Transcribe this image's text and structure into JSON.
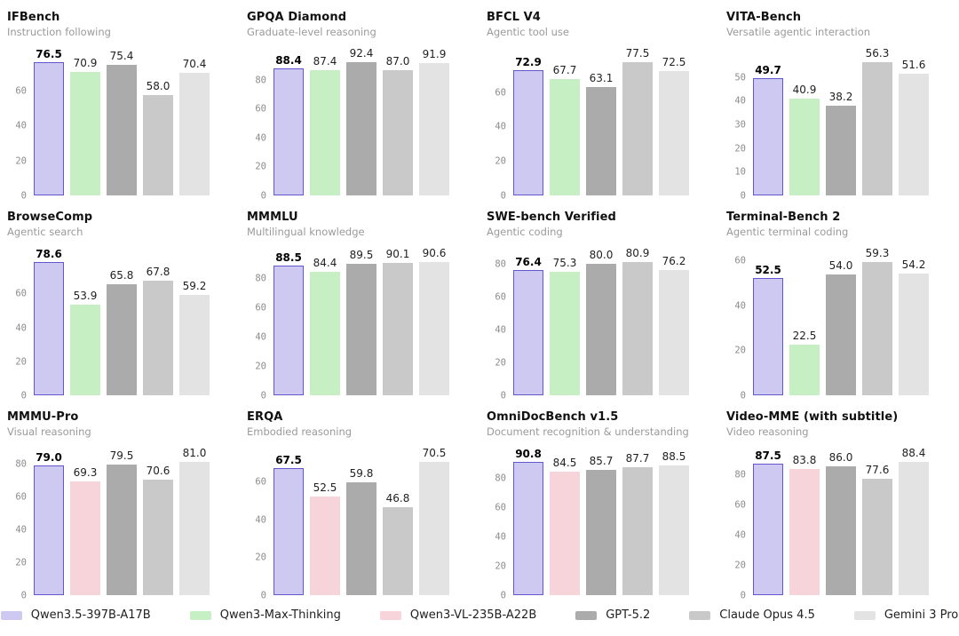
{
  "models": [
    {
      "name": "Qwen3.5-397B-A17B",
      "fill": "#cdc9f0",
      "border": "#6257cf"
    },
    {
      "name": "Qwen3-Max-Thinking",
      "fill": "#c6efc3",
      "border": null
    },
    {
      "name": "Qwen3-VL-235B-A22B",
      "fill": "#f6d4da",
      "border": null
    },
    {
      "name": "GPT-5.2",
      "fill": "#ababab",
      "border": null
    },
    {
      "name": "Claude Opus 4.5",
      "fill": "#c9c9c9",
      "border": null
    },
    {
      "name": "Gemini 3 Pro",
      "fill": "#e3e3e3",
      "border": null
    }
  ],
  "chart_data": [
    {
      "type": "bar",
      "title": "IFBench",
      "subtitle": "Instruction following",
      "yticks": [
        0,
        20,
        40,
        60
      ],
      "grid": false,
      "series": [
        {
          "name": "Qwen3.5-397B-A17B",
          "value": 76.5,
          "label": "76.5",
          "highlight": true
        },
        {
          "name": "Qwen3-Max-Thinking",
          "value": 70.9,
          "label": "70.9",
          "highlight": false
        },
        {
          "name": "GPT-5.2",
          "value": 75.4,
          "label": "75.4",
          "highlight": false
        },
        {
          "name": "Claude Opus 4.5",
          "value": 58.0,
          "label": "58.0",
          "highlight": false
        },
        {
          "name": "Gemini 3 Pro",
          "value": 70.4,
          "label": "70.4",
          "highlight": false
        }
      ]
    },
    {
      "type": "bar",
      "title": "GPQA Diamond",
      "subtitle": "Graduate-level reasoning",
      "yticks": [
        0,
        20,
        40,
        60,
        80
      ],
      "grid": false,
      "series": [
        {
          "name": "Qwen3.5-397B-A17B",
          "value": 88.4,
          "label": "88.4",
          "highlight": true
        },
        {
          "name": "Qwen3-Max-Thinking",
          "value": 87.4,
          "label": "87.4",
          "highlight": false
        },
        {
          "name": "GPT-5.2",
          "value": 92.4,
          "label": "92.4",
          "highlight": false
        },
        {
          "name": "Claude Opus 4.5",
          "value": 87.0,
          "label": "87.0",
          "highlight": false
        },
        {
          "name": "Gemini 3 Pro",
          "value": 91.9,
          "label": "91.9",
          "highlight": false
        }
      ]
    },
    {
      "type": "bar",
      "title": "BFCL V4",
      "subtitle": "Agentic tool use",
      "yticks": [
        0,
        20,
        40,
        60
      ],
      "grid": false,
      "series": [
        {
          "name": "Qwen3.5-397B-A17B",
          "value": 72.9,
          "label": "72.9",
          "highlight": true
        },
        {
          "name": "Qwen3-Max-Thinking",
          "value": 67.7,
          "label": "67.7",
          "highlight": false
        },
        {
          "name": "GPT-5.2",
          "value": 63.1,
          "label": "63.1",
          "highlight": false
        },
        {
          "name": "Claude Opus 4.5",
          "value": 77.5,
          "label": "77.5",
          "highlight": false
        },
        {
          "name": "Gemini 3 Pro",
          "value": 72.5,
          "label": "72.5",
          "highlight": false
        }
      ]
    },
    {
      "type": "bar",
      "title": "VITA-Bench",
      "subtitle": "Versatile agentic interaction",
      "yticks": [
        0,
        10,
        20,
        30,
        40,
        50
      ],
      "grid": false,
      "series": [
        {
          "name": "Qwen3.5-397B-A17B",
          "value": 49.7,
          "label": "49.7",
          "highlight": true
        },
        {
          "name": "Qwen3-Max-Thinking",
          "value": 40.9,
          "label": "40.9",
          "highlight": false
        },
        {
          "name": "GPT-5.2",
          "value": 38.2,
          "label": "38.2",
          "highlight": false
        },
        {
          "name": "Claude Opus 4.5",
          "value": 56.3,
          "label": "56.3",
          "highlight": false
        },
        {
          "name": "Gemini 3 Pro",
          "value": 51.6,
          "label": "51.6",
          "highlight": false
        }
      ]
    },
    {
      "type": "bar",
      "title": "BrowseComp",
      "subtitle": "Agentic search",
      "yticks": [
        0,
        20,
        40,
        60
      ],
      "grid": false,
      "series": [
        {
          "name": "Qwen3.5-397B-A17B",
          "value": 78.6,
          "label": "78.6",
          "highlight": true
        },
        {
          "name": "Qwen3-Max-Thinking",
          "value": 53.9,
          "label": "53.9",
          "highlight": false
        },
        {
          "name": "GPT-5.2",
          "value": 65.8,
          "label": "65.8",
          "highlight": false
        },
        {
          "name": "Claude Opus 4.5",
          "value": 67.8,
          "label": "67.8",
          "highlight": false
        },
        {
          "name": "Gemini 3 Pro",
          "value": 59.2,
          "label": "59.2",
          "highlight": false
        }
      ]
    },
    {
      "type": "bar",
      "title": "MMMLU",
      "subtitle": "Multilingual knowledge",
      "yticks": [
        0,
        20,
        40,
        60,
        80
      ],
      "grid": false,
      "series": [
        {
          "name": "Qwen3.5-397B-A17B",
          "value": 88.5,
          "label": "88.5",
          "highlight": true
        },
        {
          "name": "Qwen3-Max-Thinking",
          "value": 84.4,
          "label": "84.4",
          "highlight": false
        },
        {
          "name": "GPT-5.2",
          "value": 89.5,
          "label": "89.5",
          "highlight": false
        },
        {
          "name": "Claude Opus 4.5",
          "value": 90.1,
          "label": "90.1",
          "highlight": false
        },
        {
          "name": "Gemini 3 Pro",
          "value": 90.6,
          "label": "90.6",
          "highlight": false
        }
      ]
    },
    {
      "type": "bar",
      "title": "SWE-bench Verified",
      "subtitle": "Agentic coding",
      "yticks": [
        0,
        20,
        40,
        60,
        80
      ],
      "grid": false,
      "series": [
        {
          "name": "Qwen3.5-397B-A17B",
          "value": 76.4,
          "label": "76.4",
          "highlight": true
        },
        {
          "name": "Qwen3-Max-Thinking",
          "value": 75.3,
          "label": "75.3",
          "highlight": false
        },
        {
          "name": "GPT-5.2",
          "value": 80.0,
          "label": "80.0",
          "highlight": false
        },
        {
          "name": "Claude Opus 4.5",
          "value": 80.9,
          "label": "80.9",
          "highlight": false
        },
        {
          "name": "Gemini 3 Pro",
          "value": 76.2,
          "label": "76.2",
          "highlight": false
        }
      ]
    },
    {
      "type": "bar",
      "title": "Terminal-Bench 2",
      "subtitle": "Agentic terminal coding",
      "yticks": [
        0,
        20,
        40,
        60
      ],
      "grid": false,
      "series": [
        {
          "name": "Qwen3.5-397B-A17B",
          "value": 52.5,
          "label": "52.5",
          "highlight": true
        },
        {
          "name": "Qwen3-Max-Thinking",
          "value": 22.5,
          "label": "22.5",
          "highlight": false
        },
        {
          "name": "GPT-5.2",
          "value": 54.0,
          "label": "54.0",
          "highlight": false
        },
        {
          "name": "Claude Opus 4.5",
          "value": 59.3,
          "label": "59.3",
          "highlight": false
        },
        {
          "name": "Gemini 3 Pro",
          "value": 54.2,
          "label": "54.2",
          "highlight": false
        }
      ]
    },
    {
      "type": "bar",
      "title": "MMMU-Pro",
      "subtitle": "Visual reasoning",
      "yticks": [
        0,
        20,
        40,
        60,
        80
      ],
      "grid": false,
      "series": [
        {
          "name": "Qwen3.5-397B-A17B",
          "value": 79.0,
          "label": "79.0",
          "highlight": true
        },
        {
          "name": "Qwen3-VL-235B-A22B",
          "value": 69.3,
          "label": "69.3",
          "highlight": false
        },
        {
          "name": "GPT-5.2",
          "value": 79.5,
          "label": "79.5",
          "highlight": false
        },
        {
          "name": "Claude Opus 4.5",
          "value": 70.6,
          "label": "70.6",
          "highlight": false
        },
        {
          "name": "Gemini 3 Pro",
          "value": 81.0,
          "label": "81.0",
          "highlight": false
        }
      ]
    },
    {
      "type": "bar",
      "title": "ERQA",
      "subtitle": "Embodied reasoning",
      "yticks": [
        0,
        20,
        40,
        60
      ],
      "grid": false,
      "series": [
        {
          "name": "Qwen3.5-397B-A17B",
          "value": 67.5,
          "label": "67.5",
          "highlight": true
        },
        {
          "name": "Qwen3-VL-235B-A22B",
          "value": 52.5,
          "label": "52.5",
          "highlight": false
        },
        {
          "name": "GPT-5.2",
          "value": 59.8,
          "label": "59.8",
          "highlight": false
        },
        {
          "name": "Claude Opus 4.5",
          "value": 46.8,
          "label": "46.8",
          "highlight": false
        },
        {
          "name": "Gemini 3 Pro",
          "value": 70.5,
          "label": "70.5",
          "highlight": false
        }
      ]
    },
    {
      "type": "bar",
      "title": "OmniDocBench v1.5",
      "subtitle": "Document recognition & understanding",
      "yticks": [
        0,
        20,
        40,
        60,
        80
      ],
      "grid": false,
      "series": [
        {
          "name": "Qwen3.5-397B-A17B",
          "value": 90.8,
          "label": "90.8",
          "highlight": true
        },
        {
          "name": "Qwen3-VL-235B-A22B",
          "value": 84.5,
          "label": "84.5",
          "highlight": false
        },
        {
          "name": "GPT-5.2",
          "value": 85.7,
          "label": "85.7",
          "highlight": false
        },
        {
          "name": "Claude Opus 4.5",
          "value": 87.7,
          "label": "87.7",
          "highlight": false
        },
        {
          "name": "Gemini 3 Pro",
          "value": 88.5,
          "label": "88.5",
          "highlight": false
        }
      ]
    },
    {
      "type": "bar",
      "title": "Video-MME (with subtitle)",
      "subtitle": "Video reasoning",
      "yticks": [
        0,
        20,
        40,
        60,
        80
      ],
      "grid": false,
      "series": [
        {
          "name": "Qwen3.5-397B-A17B",
          "value": 87.5,
          "label": "87.5",
          "highlight": true
        },
        {
          "name": "Qwen3-VL-235B-A22B",
          "value": 83.8,
          "label": "83.8",
          "highlight": false
        },
        {
          "name": "GPT-5.2",
          "value": 86.0,
          "label": "86.0",
          "highlight": false
        },
        {
          "name": "Claude Opus 4.5",
          "value": 77.6,
          "label": "77.6",
          "highlight": false
        },
        {
          "name": "Gemini 3 Pro",
          "value": 88.4,
          "label": "88.4",
          "highlight": false
        }
      ]
    }
  ],
  "legend": {
    "items": [
      "Qwen3.5-397B-A17B",
      "Qwen3-Max-Thinking",
      "Qwen3-VL-235B-A22B",
      "GPT-5.2",
      "Claude Opus 4.5",
      "Gemini 3 Pro"
    ]
  },
  "layout": {
    "headroom_ratio": 0.985
  }
}
